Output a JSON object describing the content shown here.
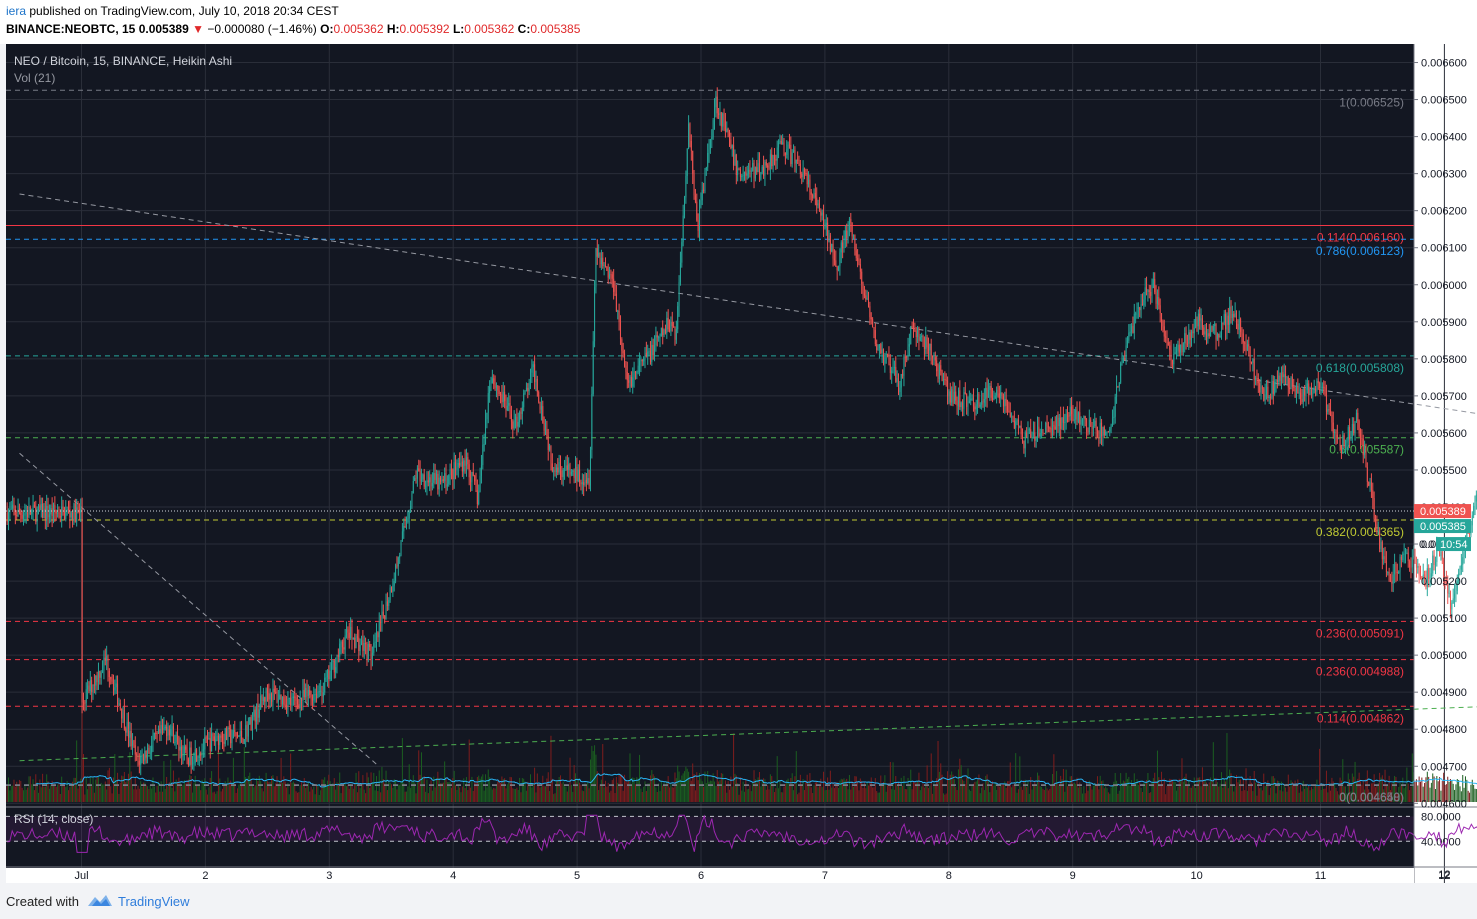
{
  "header": {
    "author": "iera",
    "published": "published on TradingView.com, July 10, 2018 20:34 CEST",
    "symbol": "BINANCE:NEOBTC, 15",
    "last": "0.005389",
    "change_arrow": "▼",
    "change": "−0.000080 (−1.46%)",
    "o_label": "O:",
    "o_value": "0.005362",
    "h_label": "H:",
    "h_value": "0.005392",
    "l_label": "L:",
    "l_value": "0.005362",
    "c_label": "C:",
    "c_value": "0.005385"
  },
  "legend": {
    "title": "NEO / Bitcoin, 15, BINANCE, Heikin Ashi",
    "vol": "Vol (21)",
    "rsi": "RSI (14, close)"
  },
  "colors": {
    "background": "#131722",
    "grid": "#2a2e39",
    "up": "#26a69a",
    "down": "#ef5350",
    "vol_ma": "#29b6f6",
    "rsi_line": "#9c27b0",
    "axis_bg": "#ffffff"
  },
  "footer": {
    "created": "Created with",
    "brand": "TradingView"
  },
  "price_axis": {
    "ticks": [
      "0.006600",
      "0.006500",
      "0.006400",
      "0.006300",
      "0.006200",
      "0.006100",
      "0.006000",
      "0.005900",
      "0.005800",
      "0.005700",
      "0.005600",
      "0.005500",
      "0.005400",
      "0.005300",
      "0.005200",
      "0.005100",
      "0.005000",
      "0.004900",
      "0.004800",
      "0.004700",
      "0.004600"
    ],
    "current_price_badge": "0.005389",
    "close_badge": "0.005385",
    "countdown_badge": "10:54",
    "partial_label": "0.0"
  },
  "rsi_axis": {
    "ticks": [
      "80.0000",
      "40.0000"
    ]
  },
  "time_axis": {
    "ticks": [
      "Jul",
      "2",
      "3",
      "4",
      "5",
      "6",
      "7",
      "8",
      "9",
      "10",
      "11",
      "12"
    ]
  },
  "chart_data": {
    "type": "candlestick",
    "title": "NEO / Bitcoin, 15, BINANCE, Heikin Ashi",
    "x_ticks": [
      "Jul",
      "2",
      "3",
      "4",
      "5",
      "6",
      "7",
      "8",
      "9",
      "10",
      "11",
      "12"
    ],
    "y_range": [
      0.00459,
      0.00665
    ],
    "close_path": [
      {
        "day": 0.0,
        "price": 0.00487
      },
      {
        "day": 0.2,
        "price": 0.00499
      },
      {
        "day": 0.45,
        "price": 0.00471
      },
      {
        "day": 0.7,
        "price": 0.00481
      },
      {
        "day": 0.85,
        "price": 0.00472
      },
      {
        "day": 1.1,
        "price": 0.00478
      },
      {
        "day": 1.3,
        "price": 0.00478
      },
      {
        "day": 1.5,
        "price": 0.0049
      },
      {
        "day": 1.7,
        "price": 0.00487
      },
      {
        "day": 1.95,
        "price": 0.00491
      },
      {
        "day": 2.15,
        "price": 0.00506
      },
      {
        "day": 2.35,
        "price": 0.005
      },
      {
        "day": 2.55,
        "price": 0.00525
      },
      {
        "day": 2.7,
        "price": 0.00549
      },
      {
        "day": 2.9,
        "price": 0.00546
      },
      {
        "day": 3.1,
        "price": 0.00553
      },
      {
        "day": 3.2,
        "price": 0.00542
      },
      {
        "day": 3.3,
        "price": 0.00576
      },
      {
        "day": 3.5,
        "price": 0.00562
      },
      {
        "day": 3.65,
        "price": 0.00577
      },
      {
        "day": 3.8,
        "price": 0.00552
      },
      {
        "day": 3.95,
        "price": 0.00549
      },
      {
        "day": 4.1,
        "price": 0.00548
      },
      {
        "day": 4.15,
        "price": 0.0061
      },
      {
        "day": 4.3,
        "price": 0.006
      },
      {
        "day": 4.4,
        "price": 0.00573
      },
      {
        "day": 4.6,
        "price": 0.00582
      },
      {
        "day": 4.75,
        "price": 0.0059
      },
      {
        "day": 4.8,
        "price": 0.00587
      },
      {
        "day": 4.9,
        "price": 0.00644
      },
      {
        "day": 4.97,
        "price": 0.00615
      },
      {
        "day": 5.12,
        "price": 0.0065
      },
      {
        "day": 5.3,
        "price": 0.0063
      },
      {
        "day": 5.5,
        "price": 0.00631
      },
      {
        "day": 5.65,
        "price": 0.00638
      },
      {
        "day": 5.8,
        "price": 0.00632
      },
      {
        "day": 5.95,
        "price": 0.0062
      },
      {
        "day": 6.1,
        "price": 0.00606
      },
      {
        "day": 6.2,
        "price": 0.00616
      },
      {
        "day": 6.4,
        "price": 0.00585
      },
      {
        "day": 6.6,
        "price": 0.00573
      },
      {
        "day": 6.7,
        "price": 0.00588
      },
      {
        "day": 6.85,
        "price": 0.00582
      },
      {
        "day": 7.0,
        "price": 0.0057
      },
      {
        "day": 7.2,
        "price": 0.00568
      },
      {
        "day": 7.4,
        "price": 0.00572
      },
      {
        "day": 7.6,
        "price": 0.00558
      },
      {
        "day": 7.8,
        "price": 0.00561
      },
      {
        "day": 8.0,
        "price": 0.00565
      },
      {
        "day": 8.15,
        "price": 0.00561
      },
      {
        "day": 8.3,
        "price": 0.0056
      },
      {
        "day": 8.4,
        "price": 0.0058
      },
      {
        "day": 8.55,
        "price": 0.00596
      },
      {
        "day": 8.65,
        "price": 0.006
      },
      {
        "day": 8.8,
        "price": 0.0058
      },
      {
        "day": 9.0,
        "price": 0.0059
      },
      {
        "day": 9.15,
        "price": 0.00587
      },
      {
        "day": 9.3,
        "price": 0.00593
      },
      {
        "day": 9.45,
        "price": 0.00578
      },
      {
        "day": 9.55,
        "price": 0.0057
      },
      {
        "day": 9.7,
        "price": 0.00575
      },
      {
        "day": 9.85,
        "price": 0.0057
      },
      {
        "day": 10.0,
        "price": 0.00573
      },
      {
        "day": 10.15,
        "price": 0.00556
      },
      {
        "day": 10.3,
        "price": 0.00564
      },
      {
        "day": 10.45,
        "price": 0.00535
      },
      {
        "day": 10.55,
        "price": 0.0052
      },
      {
        "day": 10.7,
        "price": 0.00527
      },
      {
        "day": 10.85,
        "price": 0.0052
      },
      {
        "day": 10.95,
        "price": 0.00529
      },
      {
        "day": 11.05,
        "price": 0.00514
      },
      {
        "day": 11.15,
        "price": 0.00526
      },
      {
        "day": 11.25,
        "price": 0.00542
      },
      {
        "day": 11.4,
        "price": 0.00534
      },
      {
        "day": 11.5,
        "price": 0.005385
      }
    ],
    "fib_levels": [
      {
        "label": "1(0.006525)",
        "price": 0.006525,
        "color": "#787b86"
      },
      {
        "label": "0.114(0.006160)",
        "price": 0.00616,
        "color": "#f23645",
        "solid": true
      },
      {
        "label": "0.786(0.006123)",
        "price": 0.006123,
        "color": "#2196f3"
      },
      {
        "label": "0.618(0.005808)",
        "price": 0.005808,
        "color": "#26a69a"
      },
      {
        "label": "0.5(0.005587)",
        "price": 0.005587,
        "color": "#4caf50"
      },
      {
        "label": "0.382(0.005365)",
        "price": 0.005365,
        "color": "#c0ca33"
      },
      {
        "label": "0.236(0.005091)",
        "price": 0.005091,
        "color": "#f23645"
      },
      {
        "label": "0.236(0.004988)",
        "price": 0.004988,
        "color": "#f23645"
      },
      {
        "label": "0.114(0.004862)",
        "price": 0.004862,
        "color": "#f23645"
      },
      {
        "label": "0(0.004650)",
        "price": 0.00465,
        "color": "#787b86"
      },
      {
        "label": "0(0.004648)",
        "price": 0.004648,
        "color": "#787b86"
      }
    ],
    "trendlines": [
      {
        "from": {
          "day": -0.5,
          "price": 0.006245
        },
        "to": {
          "day": 12.8,
          "price": 0.005575
        },
        "color": "#9598a1",
        "style": "dashed"
      },
      {
        "from": {
          "day": -0.5,
          "price": 0.005545
        },
        "to": {
          "day": 2.4,
          "price": 0.0047
        },
        "color": "#9598a1",
        "style": "dashed"
      },
      {
        "from": {
          "day": -0.5,
          "price": 0.004715
        },
        "to": {
          "day": 12.85,
          "price": 0.00488
        },
        "color": "#4caf50",
        "style": "dashed"
      }
    ],
    "rsi_levels": [
      80,
      40
    ]
  }
}
